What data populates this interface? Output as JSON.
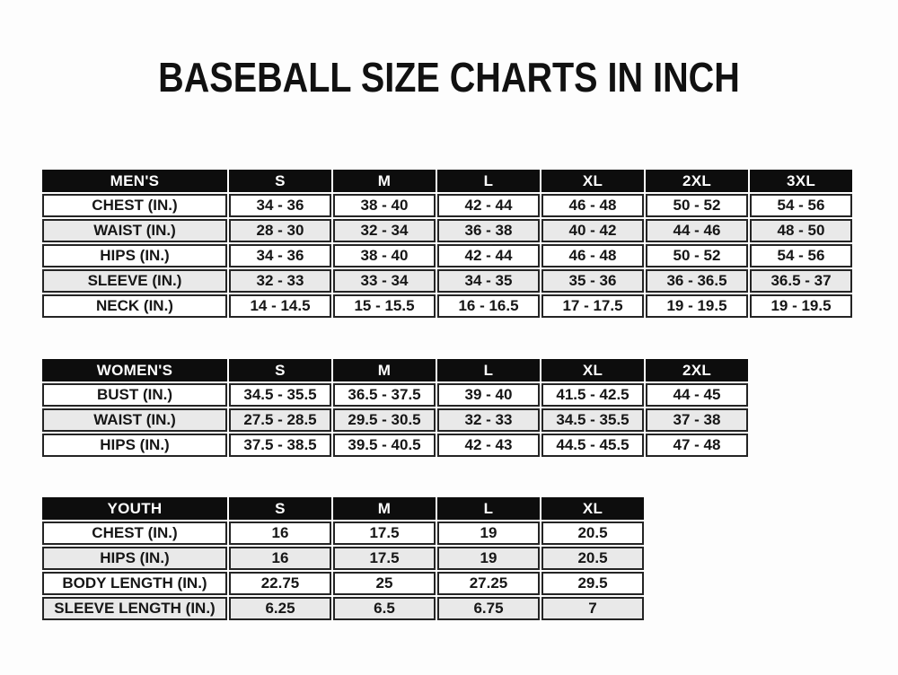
{
  "page_title": "BASEBALL SIZE CHARTS IN INCH",
  "colors": {
    "header_bg": "#0d0d0d",
    "header_text": "#ffffff",
    "stripe": "#e9e9e9",
    "row_bg": "#ffffff",
    "border": "#242424",
    "text": "#161616",
    "page_bg": "#fdfdfd"
  },
  "chart_data": [
    {
      "type": "table",
      "id": "mens",
      "title": "MEN'S",
      "columns": [
        "MEN'S",
        "S",
        "M",
        "L",
        "XL",
        "2XL",
        "3XL"
      ],
      "rows": [
        [
          "CHEST (IN.)",
          "34 - 36",
          "38 - 40",
          "42 - 44",
          "46 - 48",
          "50 - 52",
          "54 - 56"
        ],
        [
          "WAIST (IN.)",
          "28 - 30",
          "32 - 34",
          "36 - 38",
          "40 - 42",
          "44 - 46",
          "48 - 50"
        ],
        [
          "HIPS (IN.)",
          "34 - 36",
          "38 - 40",
          "42 - 44",
          "46 - 48",
          "50 - 52",
          "54 - 56"
        ],
        [
          "SLEEVE (IN.)",
          "32 - 33",
          "33 - 34",
          "34 - 35",
          "35 - 36",
          "36 - 36.5",
          "36.5 - 37"
        ],
        [
          "NECK (IN.)",
          "14 - 14.5",
          "15 - 15.5",
          "16 - 16.5",
          "17 - 17.5",
          "19 - 19.5",
          "19 - 19.5"
        ]
      ]
    },
    {
      "type": "table",
      "id": "womens",
      "title": "WOMEN'S",
      "columns": [
        "WOMEN'S",
        "S",
        "M",
        "L",
        "XL",
        "2XL"
      ],
      "rows": [
        [
          "BUST (IN.)",
          "34.5 - 35.5",
          "36.5 - 37.5",
          "39 - 40",
          "41.5 - 42.5",
          "44 - 45"
        ],
        [
          "WAIST (IN.)",
          "27.5 - 28.5",
          "29.5 - 30.5",
          "32 - 33",
          "34.5 - 35.5",
          "37 - 38"
        ],
        [
          "HIPS (IN.)",
          "37.5 - 38.5",
          "39.5 - 40.5",
          "42 - 43",
          "44.5 - 45.5",
          "47 - 48"
        ]
      ]
    },
    {
      "type": "table",
      "id": "youth",
      "title": "YOUTH",
      "columns": [
        "YOUTH",
        "S",
        "M",
        "L",
        "XL"
      ],
      "rows": [
        [
          "CHEST (IN.)",
          "16",
          "17.5",
          "19",
          "20.5"
        ],
        [
          "HIPS (IN.)",
          "16",
          "17.5",
          "19",
          "20.5"
        ],
        [
          "BODY LENGTH (IN.)",
          "22.75",
          "25",
          "27.25",
          "29.5"
        ],
        [
          "SLEEVE LENGTH (IN.)",
          "6.25",
          "6.5",
          "6.75",
          "7"
        ]
      ]
    }
  ]
}
